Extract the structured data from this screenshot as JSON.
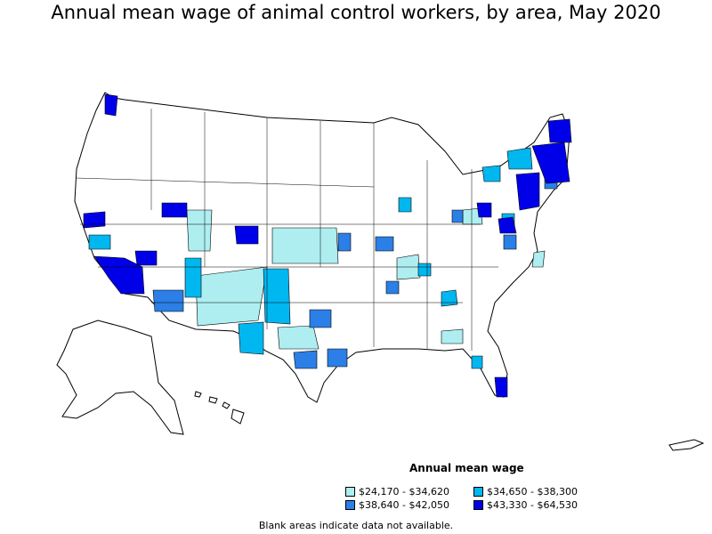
{
  "title": "Annual mean wage of animal control workers, by area, May 2020",
  "legend": {
    "title": "Annual mean wage",
    "items": [
      {
        "label": "$24,170 - $34,620",
        "color": "#aeeef0"
      },
      {
        "label": "$34,650 - $38,300",
        "color": "#00b7f0"
      },
      {
        "label": "$38,640 - $42,050",
        "color": "#2b7fe6"
      },
      {
        "label": "$43,330 - $64,530",
        "color": "#0000e8"
      }
    ]
  },
  "note": "Blank areas indicate data not available.",
  "colors": {
    "outline": "#000000",
    "background": "#ffffff",
    "light": "#aeeef0",
    "medium": "#00b7f0",
    "dark_medium": "#2b7fe6",
    "dark": "#0000e8"
  }
}
